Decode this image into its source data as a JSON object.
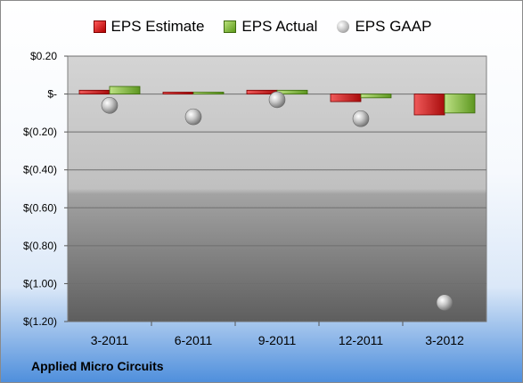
{
  "company_label": "Applied Micro Circuits",
  "colors": {
    "estimate": "#d42a2a",
    "actual": "#8cc63f",
    "gaap": "#b5b5b5"
  },
  "chart_data": {
    "type": "bar",
    "title": "",
    "xlabel": "",
    "ylabel": "",
    "ylim": [
      -1.2,
      0.2
    ],
    "grid": true,
    "legend_position": "top",
    "categories": [
      "3-2011",
      "6-2011",
      "9-2011",
      "12-2011",
      "3-2012"
    ],
    "y_ticks": [
      0.2,
      0,
      -0.2,
      -0.4,
      -0.6,
      -0.8,
      -1.0,
      -1.2
    ],
    "y_tick_labels": [
      "$0.20",
      "$-",
      "$(0.20)",
      "$(0.40)",
      "$(0.60)",
      "$(0.80)",
      "$(1.00)",
      "$(1.20)"
    ],
    "series": [
      {
        "name": "EPS Estimate",
        "type": "bar",
        "values": [
          0.02,
          0.01,
          0.02,
          -0.04,
          -0.11
        ]
      },
      {
        "name": "EPS Actual",
        "type": "bar",
        "values": [
          0.04,
          0.01,
          0.02,
          -0.02,
          -0.1
        ]
      },
      {
        "name": "EPS GAAP",
        "type": "scatter",
        "values": [
          -0.06,
          -0.12,
          -0.03,
          -0.13,
          -1.1
        ]
      }
    ]
  }
}
